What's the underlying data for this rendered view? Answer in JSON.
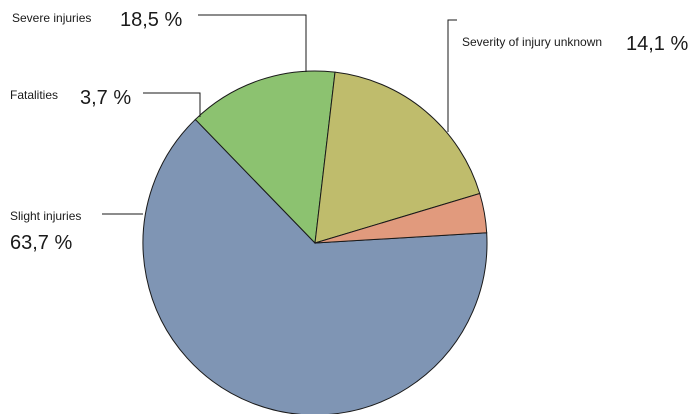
{
  "chart_data": {
    "type": "pie",
    "title": "",
    "slices": [
      {
        "label": "Slight injuries",
        "value_label": "63,7 %",
        "value": 63.7,
        "color": "#7f95b4"
      },
      {
        "label": "Severity of injury unknown",
        "value_label": "14,1 %",
        "value": 14.1,
        "color": "#8cc270"
      },
      {
        "label": "Severe injuries",
        "value_label": "18,5 %",
        "value": 18.5,
        "color": "#bfbc6c"
      },
      {
        "label": "Fatalities",
        "value_label": "3,7 %",
        "value": 3.7,
        "color": "#e19a7d"
      }
    ]
  }
}
